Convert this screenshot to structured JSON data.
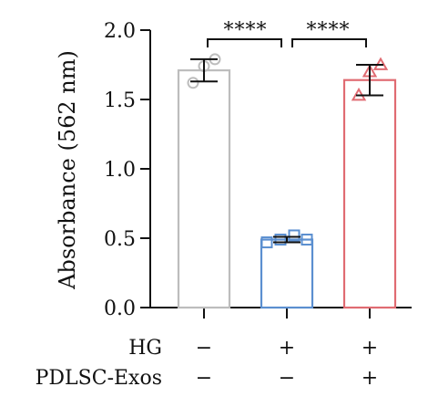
{
  "chart_data": {
    "type": "bar",
    "ylabel": "Absorbance (562 nm)",
    "ylim": [
      0,
      2.0
    ],
    "yticks": [
      {
        "value": 0.0,
        "label": "0.0"
      },
      {
        "value": 0.5,
        "label": "0.5"
      },
      {
        "value": 1.0,
        "label": "1.0"
      },
      {
        "value": 1.5,
        "label": "1.5"
      },
      {
        "value": 2.0,
        "label": "2.0"
      }
    ],
    "grid": false,
    "groups": [
      {
        "value": 1.71,
        "error": 0.08,
        "color": "#bdbdbd",
        "marker": "circle",
        "points": [
          1.62,
          1.74,
          1.79
        ]
      },
      {
        "value": 0.49,
        "error": 0.02,
        "color": "#5b8fd0",
        "marker": "square",
        "points": [
          0.47,
          0.49,
          0.52,
          0.49
        ]
      },
      {
        "value": 1.64,
        "error": 0.11,
        "color": "#e06b72",
        "marker": "triangle",
        "points": [
          1.53,
          1.7,
          1.75
        ]
      }
    ],
    "conditions": [
      {
        "name": "HG",
        "values": [
          "−",
          "+",
          "+"
        ]
      },
      {
        "name": "PDLSC-Exos",
        "values": [
          "−",
          "−",
          "+"
        ]
      }
    ],
    "significance": [
      {
        "from": 0,
        "to": 1,
        "label": "****"
      },
      {
        "from": 1,
        "to": 2,
        "label": "****"
      }
    ]
  }
}
